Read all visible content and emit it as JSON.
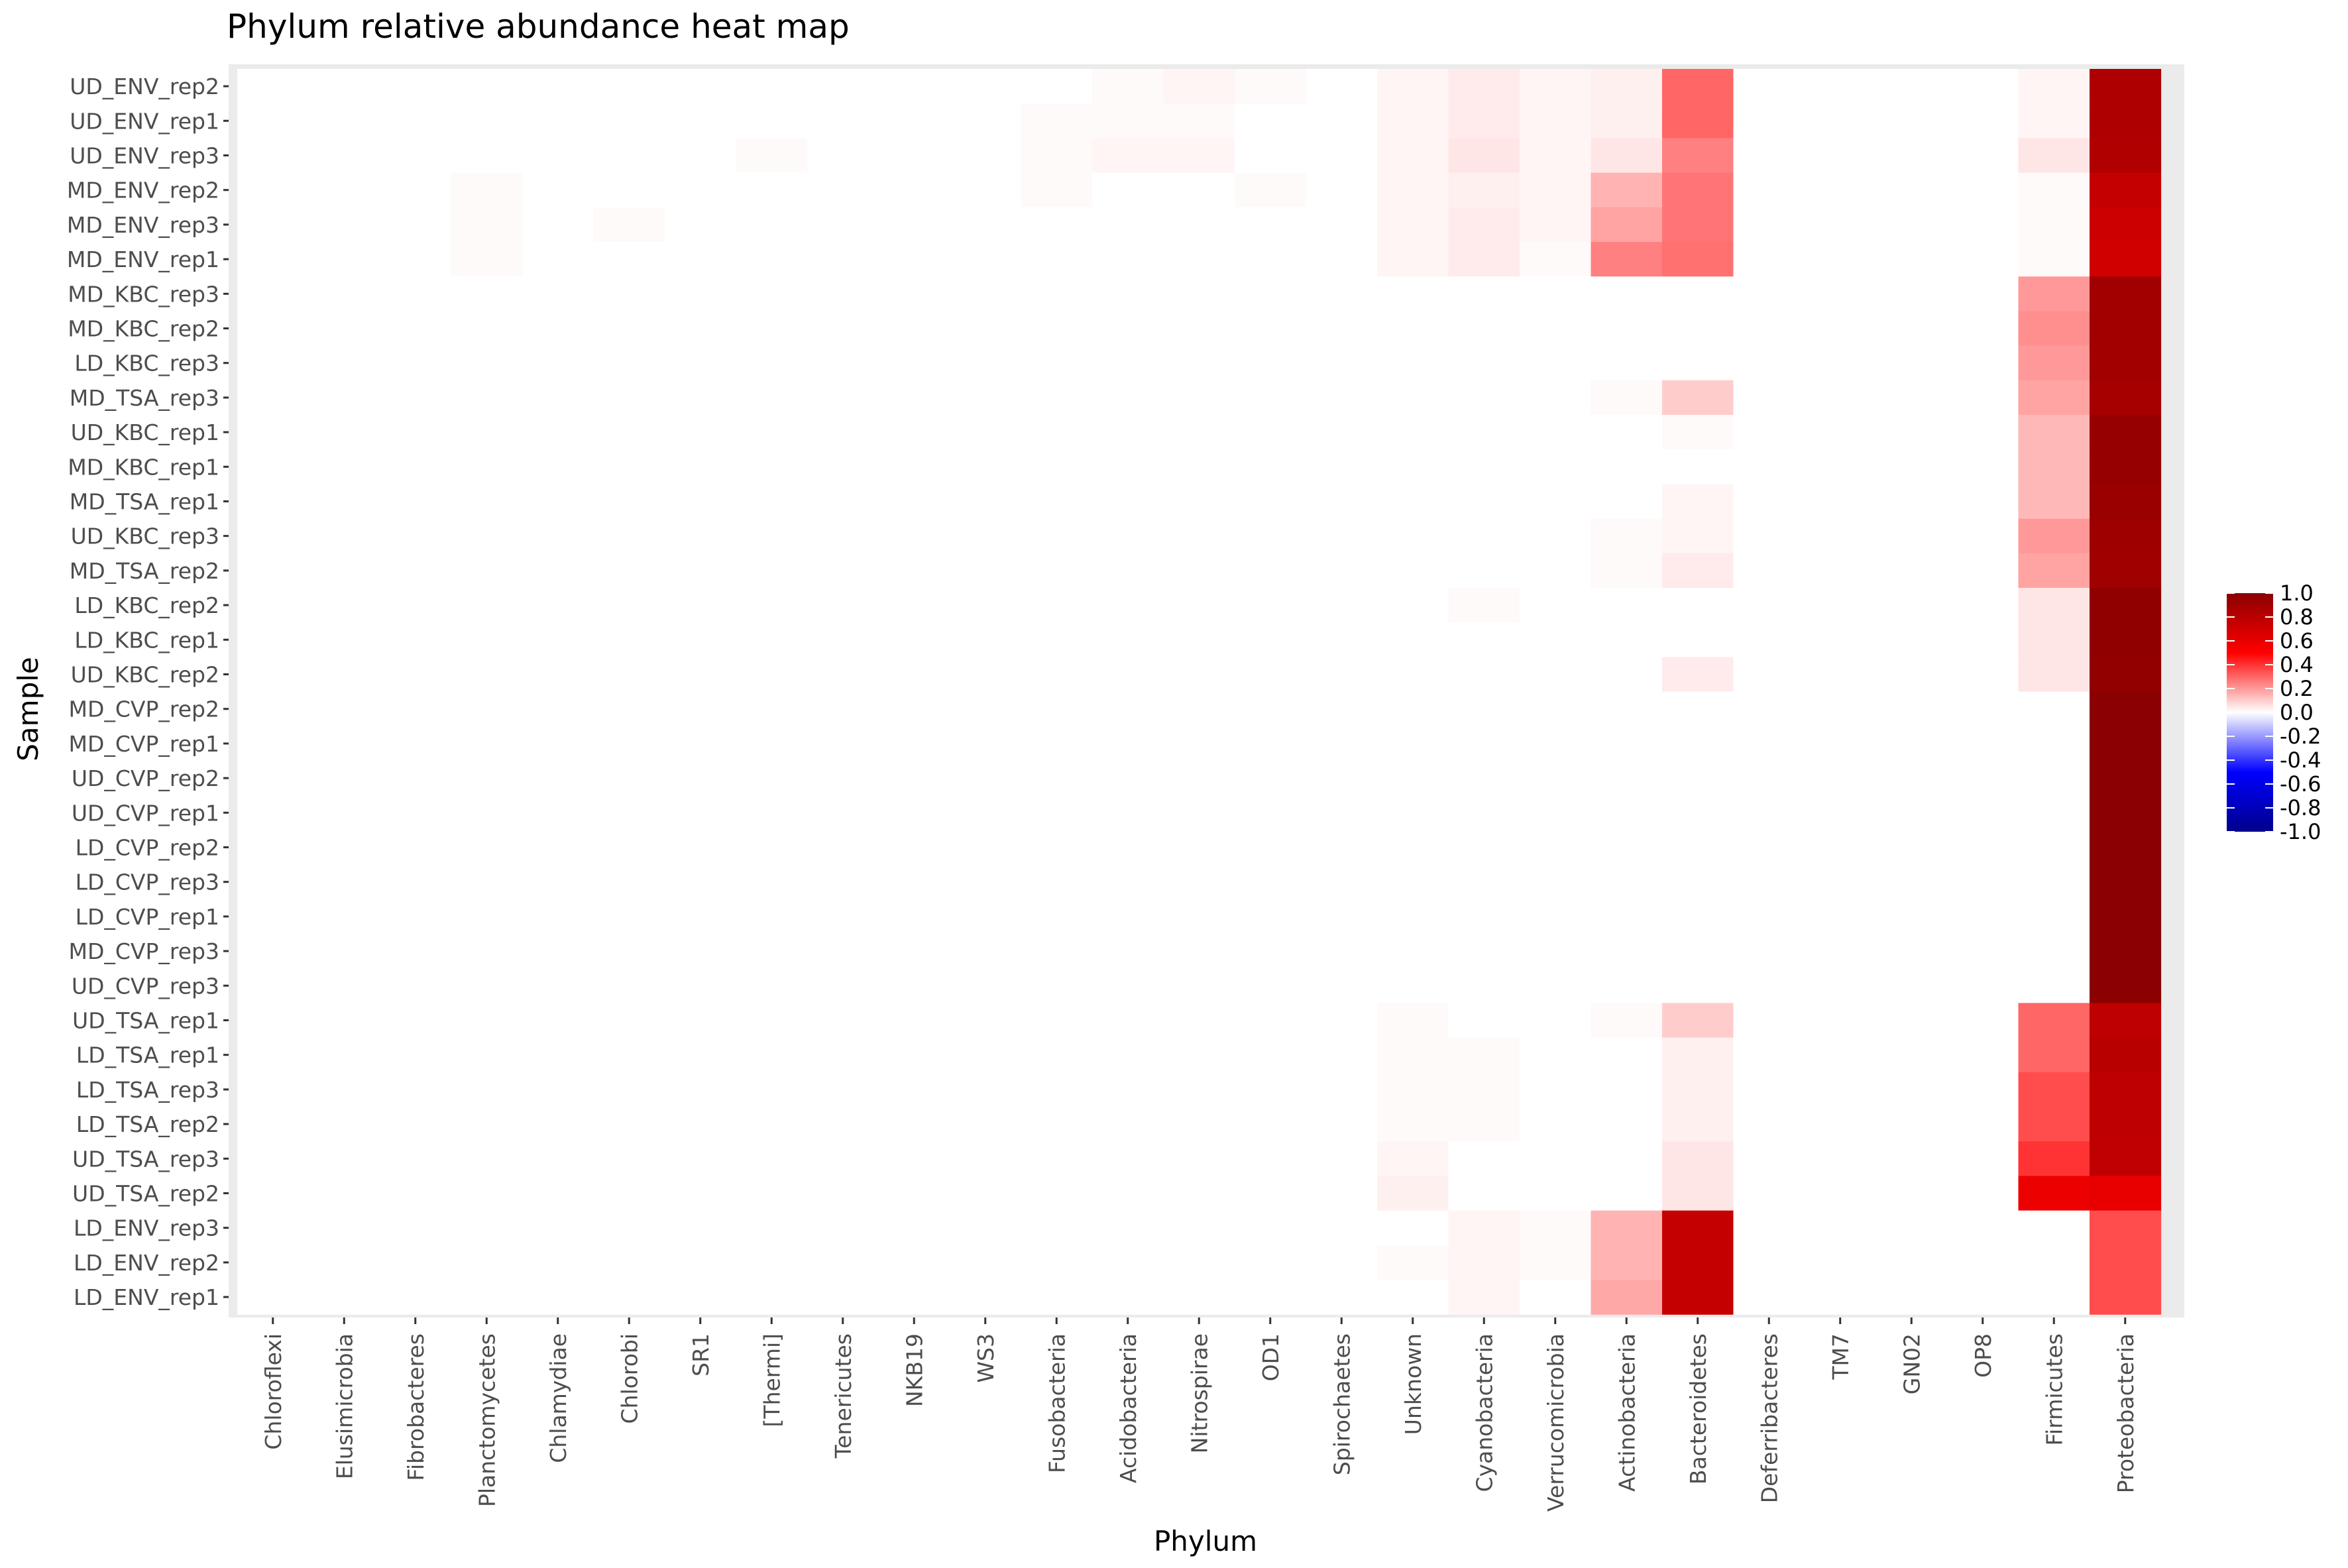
{
  "chart_data": {
    "type": "heatmap",
    "title": "Phylum relative abundance heat map",
    "xlabel": "Phylum",
    "ylabel": "Sample",
    "x": [
      "Chloroflexi",
      "Elusimicrobia",
      "Fibrobacteres",
      "Planctomycetes",
      "Chlamydiae",
      "Chlorobi",
      "SR1",
      "[Thermi]",
      "Tenericutes",
      "NKB19",
      "WS3",
      "Fusobacteria",
      "Acidobacteria",
      "Nitrospirae",
      "OD1",
      "Spirochaetes",
      "Unknown",
      "Cyanobacteria",
      "Verrucomicrobia",
      "Actinobacteria",
      "Bacteroidetes",
      "Deferribacteres",
      "TM7",
      "GN02",
      "OP8",
      "Firmicutes",
      "Proteobacteria"
    ],
    "y": [
      "UD_ENV_rep2",
      "UD_ENV_rep1",
      "UD_ENV_rep3",
      "MD_ENV_rep2",
      "MD_ENV_rep3",
      "MD_ENV_rep1",
      "MD_KBC_rep3",
      "MD_KBC_rep2",
      "LD_KBC_rep3",
      "MD_TSA_rep3",
      "UD_KBC_rep1",
      "MD_KBC_rep1",
      "MD_TSA_rep1",
      "UD_KBC_rep3",
      "MD_TSA_rep2",
      "LD_KBC_rep2",
      "LD_KBC_rep1",
      "UD_KBC_rep2",
      "MD_CVP_rep2",
      "MD_CVP_rep1",
      "UD_CVP_rep2",
      "UD_CVP_rep1",
      "LD_CVP_rep2",
      "LD_CVP_rep3",
      "LD_CVP_rep1",
      "MD_CVP_rep3",
      "UD_CVP_rep3",
      "UD_TSA_rep1",
      "LD_TSA_rep1",
      "LD_TSA_rep3",
      "LD_TSA_rep2",
      "UD_TSA_rep3",
      "UD_TSA_rep2",
      "LD_ENV_rep3",
      "LD_ENV_rep2",
      "LD_ENV_rep1"
    ],
    "values": [
      [
        0,
        0,
        0,
        0,
        0,
        0,
        0,
        0,
        0,
        0,
        0,
        0,
        0.01,
        0.02,
        0.01,
        0,
        0.02,
        0.04,
        0.02,
        0.03,
        0.3,
        0,
        0,
        0,
        0,
        0.02,
        0.85
      ],
      [
        0,
        0,
        0,
        0,
        0,
        0,
        0,
        0,
        0,
        0,
        0,
        0.01,
        0.01,
        0.01,
        0,
        0,
        0.02,
        0.04,
        0.02,
        0.03,
        0.3,
        0,
        0,
        0,
        0,
        0.02,
        0.85
      ],
      [
        0,
        0,
        0,
        0,
        0,
        0,
        0,
        0.01,
        0,
        0,
        0,
        0.01,
        0.02,
        0.02,
        0,
        0,
        0.02,
        0.05,
        0.02,
        0.05,
        0.25,
        0,
        0,
        0,
        0,
        0.05,
        0.84
      ],
      [
        0,
        0,
        0,
        0.01,
        0,
        0,
        0,
        0,
        0,
        0,
        0,
        0.01,
        0,
        0,
        0.01,
        0,
        0.02,
        0.03,
        0.02,
        0.15,
        0.27,
        0,
        0,
        0,
        0,
        0.01,
        0.75
      ],
      [
        0,
        0,
        0,
        0.01,
        0,
        0.01,
        0,
        0,
        0,
        0,
        0,
        0,
        0,
        0,
        0,
        0,
        0.02,
        0.04,
        0.02,
        0.18,
        0.27,
        0,
        0,
        0,
        0,
        0.01,
        0.72
      ],
      [
        0,
        0,
        0,
        0.01,
        0,
        0,
        0,
        0,
        0,
        0,
        0,
        0,
        0,
        0,
        0,
        0,
        0.02,
        0.04,
        0.01,
        0.25,
        0.28,
        0,
        0,
        0,
        0,
        0.01,
        0.7
      ],
      [
        0,
        0,
        0,
        0,
        0,
        0,
        0,
        0,
        0,
        0,
        0,
        0,
        0,
        0,
        0,
        0,
        0,
        0,
        0,
        0,
        0,
        0,
        0,
        0,
        0,
        0.2,
        0.9
      ],
      [
        0,
        0,
        0,
        0,
        0,
        0,
        0,
        0,
        0,
        0,
        0,
        0,
        0,
        0,
        0,
        0,
        0,
        0,
        0,
        0,
        0,
        0,
        0,
        0,
        0,
        0.22,
        0.9
      ],
      [
        0,
        0,
        0,
        0,
        0,
        0,
        0,
        0,
        0,
        0,
        0,
        0,
        0,
        0,
        0,
        0,
        0,
        0,
        0,
        0,
        0,
        0,
        0,
        0,
        0,
        0.2,
        0.9
      ],
      [
        0,
        0,
        0,
        0,
        0,
        0,
        0,
        0,
        0,
        0,
        0,
        0,
        0,
        0,
        0,
        0,
        0,
        0,
        0,
        0.01,
        0.1,
        0,
        0,
        0,
        0,
        0.18,
        0.88
      ],
      [
        0,
        0,
        0,
        0,
        0,
        0,
        0,
        0,
        0,
        0,
        0,
        0,
        0,
        0,
        0,
        0,
        0,
        0,
        0,
        0,
        0.01,
        0,
        0,
        0,
        0,
        0.14,
        0.95
      ],
      [
        0,
        0,
        0,
        0,
        0,
        0,
        0,
        0,
        0,
        0,
        0,
        0,
        0,
        0,
        0,
        0,
        0,
        0,
        0,
        0,
        0,
        0,
        0,
        0,
        0,
        0.14,
        0.95
      ],
      [
        0,
        0,
        0,
        0,
        0,
        0,
        0,
        0,
        0,
        0,
        0,
        0,
        0,
        0,
        0,
        0,
        0,
        0,
        0,
        0,
        0.02,
        0,
        0,
        0,
        0,
        0.14,
        0.93
      ],
      [
        0,
        0,
        0,
        0,
        0,
        0,
        0,
        0,
        0,
        0,
        0,
        0,
        0,
        0,
        0,
        0,
        0,
        0,
        0,
        0.01,
        0.02,
        0,
        0,
        0,
        0,
        0.2,
        0.92
      ],
      [
        0,
        0,
        0,
        0,
        0,
        0,
        0,
        0,
        0,
        0,
        0,
        0,
        0,
        0,
        0,
        0,
        0,
        0,
        0,
        0.01,
        0.04,
        0,
        0,
        0,
        0,
        0.18,
        0.91
      ],
      [
        0,
        0,
        0,
        0,
        0,
        0,
        0,
        0,
        0,
        0,
        0,
        0,
        0,
        0,
        0,
        0,
        0,
        0.01,
        0,
        0,
        0,
        0,
        0,
        0,
        0,
        0.05,
        0.98
      ],
      [
        0,
        0,
        0,
        0,
        0,
        0,
        0,
        0,
        0,
        0,
        0,
        0,
        0,
        0,
        0,
        0,
        0,
        0,
        0,
        0,
        0,
        0,
        0,
        0,
        0,
        0.05,
        0.98
      ],
      [
        0,
        0,
        0,
        0,
        0,
        0,
        0,
        0,
        0,
        0,
        0,
        0,
        0,
        0,
        0,
        0,
        0,
        0,
        0,
        0,
        0.04,
        0,
        0,
        0,
        0,
        0.05,
        0.97
      ],
      [
        0,
        0,
        0,
        0,
        0,
        0,
        0,
        0,
        0,
        0,
        0,
        0,
        0,
        0,
        0,
        0,
        0,
        0,
        0,
        0,
        0,
        0,
        0,
        0,
        0,
        0,
        1.0
      ],
      [
        0,
        0,
        0,
        0,
        0,
        0,
        0,
        0,
        0,
        0,
        0,
        0,
        0,
        0,
        0,
        0,
        0,
        0,
        0,
        0,
        0,
        0,
        0,
        0,
        0,
        0,
        1.0
      ],
      [
        0,
        0,
        0,
        0,
        0,
        0,
        0,
        0,
        0,
        0,
        0,
        0,
        0,
        0,
        0,
        0,
        0,
        0,
        0,
        0,
        0,
        0,
        0,
        0,
        0,
        0,
        1.0
      ],
      [
        0,
        0,
        0,
        0,
        0,
        0,
        0,
        0,
        0,
        0,
        0,
        0,
        0,
        0,
        0,
        0,
        0,
        0,
        0,
        0,
        0,
        0,
        0,
        0,
        0,
        0,
        1.0
      ],
      [
        0,
        0,
        0,
        0,
        0,
        0,
        0,
        0,
        0,
        0,
        0,
        0,
        0,
        0,
        0,
        0,
        0,
        0,
        0,
        0,
        0,
        0,
        0,
        0,
        0,
        0,
        1.0
      ],
      [
        0,
        0,
        0,
        0,
        0,
        0,
        0,
        0,
        0,
        0,
        0,
        0,
        0,
        0,
        0,
        0,
        0,
        0,
        0,
        0,
        0,
        0,
        0,
        0,
        0,
        0,
        1.0
      ],
      [
        0,
        0,
        0,
        0,
        0,
        0,
        0,
        0,
        0,
        0,
        0,
        0,
        0,
        0,
        0,
        0,
        0,
        0,
        0,
        0,
        0,
        0,
        0,
        0,
        0,
        0,
        1.0
      ],
      [
        0,
        0,
        0,
        0,
        0,
        0,
        0,
        0,
        0,
        0,
        0,
        0,
        0,
        0,
        0,
        0,
        0,
        0,
        0,
        0,
        0,
        0,
        0,
        0,
        0,
        0,
        1.0
      ],
      [
        0,
        0,
        0,
        0,
        0,
        0,
        0,
        0,
        0,
        0,
        0,
        0,
        0,
        0,
        0,
        0,
        0,
        0,
        0,
        0,
        0,
        0,
        0,
        0,
        0,
        0,
        1.0
      ],
      [
        0,
        0,
        0,
        0,
        0,
        0,
        0,
        0,
        0,
        0,
        0,
        0,
        0,
        0,
        0,
        0,
        0.01,
        0,
        0,
        0.01,
        0.1,
        0,
        0,
        0,
        0,
        0.3,
        0.78
      ],
      [
        0,
        0,
        0,
        0,
        0,
        0,
        0,
        0,
        0,
        0,
        0,
        0,
        0,
        0,
        0,
        0,
        0.01,
        0.01,
        0,
        0,
        0.03,
        0,
        0,
        0,
        0,
        0.3,
        0.8
      ],
      [
        0,
        0,
        0,
        0,
        0,
        0,
        0,
        0,
        0,
        0,
        0,
        0,
        0,
        0,
        0,
        0,
        0.01,
        0.01,
        0,
        0,
        0.03,
        0,
        0,
        0,
        0,
        0.35,
        0.78
      ],
      [
        0,
        0,
        0,
        0,
        0,
        0,
        0,
        0,
        0,
        0,
        0,
        0,
        0,
        0,
        0,
        0,
        0.01,
        0.01,
        0,
        0,
        0.03,
        0,
        0,
        0,
        0,
        0.35,
        0.78
      ],
      [
        0,
        0,
        0,
        0,
        0,
        0,
        0,
        0,
        0,
        0,
        0,
        0,
        0,
        0,
        0,
        0,
        0.02,
        0,
        0,
        0,
        0.05,
        0,
        0,
        0,
        0,
        0.4,
        0.77
      ],
      [
        0,
        0,
        0,
        0,
        0,
        0,
        0,
        0,
        0,
        0,
        0,
        0,
        0,
        0,
        0,
        0,
        0.03,
        0,
        0,
        0,
        0.05,
        0,
        0,
        0,
        0,
        0.58,
        0.6
      ],
      [
        0,
        0,
        0,
        0,
        0,
        0,
        0,
        0,
        0,
        0,
        0,
        0,
        0,
        0,
        0,
        0,
        0,
        0.02,
        0.01,
        0.15,
        0.75,
        0,
        0,
        0,
        0,
        0,
        0.35
      ],
      [
        0,
        0,
        0,
        0,
        0,
        0,
        0,
        0,
        0,
        0,
        0,
        0,
        0,
        0,
        0,
        0,
        0.01,
        0.02,
        0.01,
        0.15,
        0.75,
        0,
        0,
        0,
        0,
        0,
        0.35
      ],
      [
        0,
        0,
        0,
        0,
        0,
        0,
        0,
        0,
        0,
        0,
        0,
        0,
        0,
        0,
        0,
        0,
        0,
        0.02,
        0,
        0.17,
        0.75,
        0,
        0,
        0,
        0,
        0,
        0.35
      ]
    ],
    "colorbar": {
      "range": [
        -1.0,
        1.0
      ],
      "ticks": [
        "1.0",
        "0.8",
        "0.6",
        "0.4",
        "0.2",
        "0.0",
        "-0.2",
        "-0.4",
        "-0.6",
        "-0.8",
        "-1.0"
      ],
      "colors": {
        "low": "#00008b",
        "mid_low": "#0000ff",
        "mid": "#ffffff",
        "mid_high": "#ff0000",
        "high": "#8b0000"
      }
    },
    "legend_placement": "right",
    "grid": false,
    "panel_background": "#ebebeb"
  }
}
